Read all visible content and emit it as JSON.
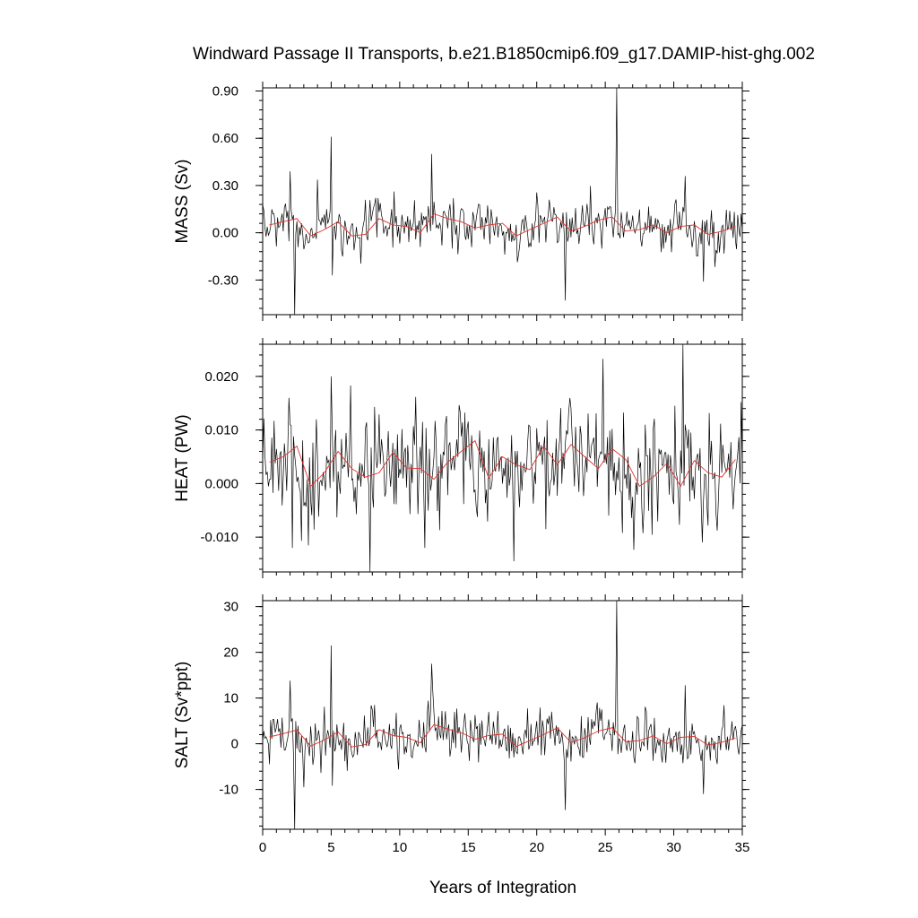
{
  "chart_data": {
    "title": "Windward Passage II Transports, b.e21.B1850cmip6.f09_g17.DAMIP-hist-ghg.002",
    "xlabel": "Years of Integration",
    "type": "line",
    "xlim": [
      0,
      35
    ],
    "xticks": [
      0,
      5,
      10,
      15,
      20,
      25,
      30,
      35
    ],
    "xtick_labels": [
      "0",
      "5",
      "10",
      "15",
      "20",
      "25",
      "30",
      "35"
    ],
    "colors": {
      "monthly": "#000000",
      "annual_mean": "#e0302a"
    },
    "panels": [
      {
        "name": "mass",
        "ylabel": "MASS (Sv)",
        "ylim": [
          -0.52,
          0.92
        ],
        "yticks": [
          0.9,
          0.6,
          0.3,
          0.0,
          -0.3
        ],
        "ytick_labels": [
          "0.90",
          "0.60",
          "0.30",
          "0.00",
          "-0.30"
        ],
        "minor_step": 0.06,
        "annual_mean": [
          0.05,
          0.07,
          0.09,
          -0.02,
          0.02,
          0.07,
          -0.02,
          -0.01,
          0.09,
          0.05,
          0.04,
          0.0,
          0.12,
          0.09,
          0.07,
          0.03,
          0.05,
          0.06,
          -0.02,
          0.02,
          0.06,
          0.1,
          0.01,
          0.04,
          0.08,
          0.1,
          0.01,
          0.02,
          0.05,
          0.0,
          0.04,
          0.05,
          -0.01,
          0.01,
          0.04
        ],
        "monthly_std": 0.08,
        "spikes": [
          [
            2.0,
            0.39
          ],
          [
            2.3,
            -0.52
          ],
          [
            5.0,
            0.61
          ],
          [
            5.1,
            -0.27
          ],
          [
            12.3,
            0.5
          ],
          [
            22.1,
            -0.43
          ],
          [
            25.8,
            0.92
          ],
          [
            30.8,
            0.36
          ],
          [
            32.2,
            -0.31
          ]
        ]
      },
      {
        "name": "heat",
        "ylabel": "HEAT (PW)",
        "ylim": [
          -0.0165,
          0.026
        ],
        "yticks": [
          0.02,
          0.01,
          0.0,
          -0.01
        ],
        "ytick_labels": [
          "0.020",
          "0.010",
          "0.000",
          "-0.010"
        ],
        "minor_step": 0.002,
        "annual_mean": [
          0.004,
          0.005,
          0.007,
          -0.0005,
          0.002,
          0.006,
          0.0028,
          0.0012,
          0.002,
          0.0058,
          0.0029,
          0.0028,
          0.0008,
          0.004,
          0.006,
          0.008,
          0.001,
          0.005,
          0.0035,
          0.0026,
          0.007,
          0.0035,
          0.0073,
          0.005,
          0.0028,
          0.0065,
          0.0045,
          -0.0005,
          0.0012,
          0.0038,
          -0.0005,
          0.0043,
          0.002,
          0.0012,
          0.0045
        ],
        "monthly_std": 0.0052,
        "spikes": [
          [
            1.9,
            0.016
          ],
          [
            2.2,
            -0.012
          ],
          [
            5.0,
            0.02
          ],
          [
            7.8,
            -0.0165
          ],
          [
            11.8,
            -0.012
          ],
          [
            18.3,
            -0.0145
          ],
          [
            30.7,
            0.026
          ],
          [
            32.1,
            -0.011
          ]
        ]
      },
      {
        "name": "salt",
        "ylabel": "SALT (Sv*ppt)",
        "ylim": [
          -18.7,
          31.3
        ],
        "yticks": [
          30,
          20,
          10,
          0,
          -10
        ],
        "ytick_labels": [
          "30",
          "20",
          "10",
          "0",
          "-10"
        ],
        "minor_step": 2,
        "annual_mean": [
          1.5,
          2.2,
          3.0,
          -0.5,
          0.8,
          2.6,
          -0.7,
          -0.2,
          3.1,
          1.8,
          1.4,
          0.2,
          4.2,
          3.2,
          2.4,
          1.0,
          1.8,
          2.1,
          -0.6,
          0.7,
          2.0,
          3.5,
          0.3,
          1.3,
          2.8,
          3.5,
          0.4,
          0.7,
          1.7,
          0.0,
          1.4,
          1.6,
          -0.3,
          0.3,
          1.3
        ],
        "monthly_std": 2.8,
        "spikes": [
          [
            2.0,
            13.8
          ],
          [
            2.3,
            -18.7
          ],
          [
            5.0,
            21.5
          ],
          [
            5.1,
            -9.2
          ],
          [
            12.3,
            17.5
          ],
          [
            22.1,
            -14.5
          ],
          [
            25.8,
            31.3
          ],
          [
            30.8,
            12.8
          ],
          [
            32.2,
            -11.0
          ]
        ]
      }
    ]
  }
}
